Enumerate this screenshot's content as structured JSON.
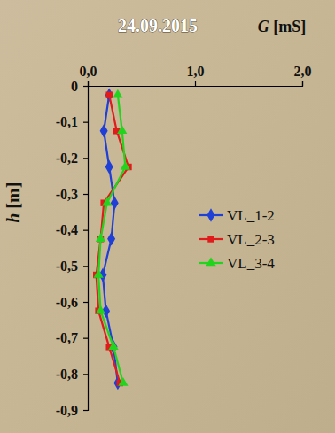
{
  "chart_data": {
    "type": "line",
    "title": "24.09.2015",
    "x_label": "G [mS]",
    "y_label": "h [m]",
    "xlim": [
      0,
      2
    ],
    "xticks": [
      {
        "value": 0,
        "label": "0,0"
      },
      {
        "value": 1,
        "label": "1,0"
      },
      {
        "value": 2,
        "label": "2,0"
      }
    ],
    "ylim": [
      -0.9,
      0
    ],
    "yticks": [
      0,
      {
        "value": -0.1,
        "label": "-0,1"
      },
      {
        "value": -0.2,
        "label": "-0,2"
      },
      {
        "value": -0.3,
        "label": "-0,3"
      },
      {
        "value": -0.4,
        "label": "-0,4"
      },
      {
        "value": -0.5,
        "label": "-0,5"
      },
      {
        "value": -0.6,
        "label": "-0,6"
      },
      {
        "value": -0.7,
        "label": "-0,7"
      },
      {
        "value": -0.8,
        "label": "-0,8"
      },
      {
        "value": -0.9,
        "label": "-0,9"
      }
    ],
    "grid": false,
    "legend": "right",
    "series": [
      {
        "name": "VL_1-2",
        "color": "#1f3fd6",
        "marker": "diamond",
        "x": [
          0.2,
          0.15,
          0.2,
          0.25,
          0.22,
          0.14,
          0.17,
          0.24,
          0.28
        ],
        "y": [
          -0.025,
          -0.125,
          -0.225,
          -0.325,
          -0.425,
          -0.525,
          -0.625,
          -0.725,
          -0.825
        ]
      },
      {
        "name": "VL_2-3",
        "color": "#e01b1b",
        "marker": "square",
        "x": [
          0.2,
          0.27,
          0.38,
          0.15,
          0.12,
          0.08,
          0.1,
          0.2,
          0.3
        ],
        "y": [
          -0.025,
          -0.125,
          -0.225,
          -0.325,
          -0.425,
          -0.525,
          -0.625,
          -0.725,
          -0.825
        ]
      },
      {
        "name": "VL_3-4",
        "color": "#22d41e",
        "marker": "triangle",
        "x": [
          0.28,
          0.32,
          0.35,
          0.18,
          0.12,
          0.1,
          0.12,
          0.24,
          0.33
        ],
        "y": [
          -0.025,
          -0.125,
          -0.225,
          -0.325,
          -0.425,
          -0.525,
          -0.625,
          -0.725,
          -0.825
        ]
      }
    ]
  }
}
